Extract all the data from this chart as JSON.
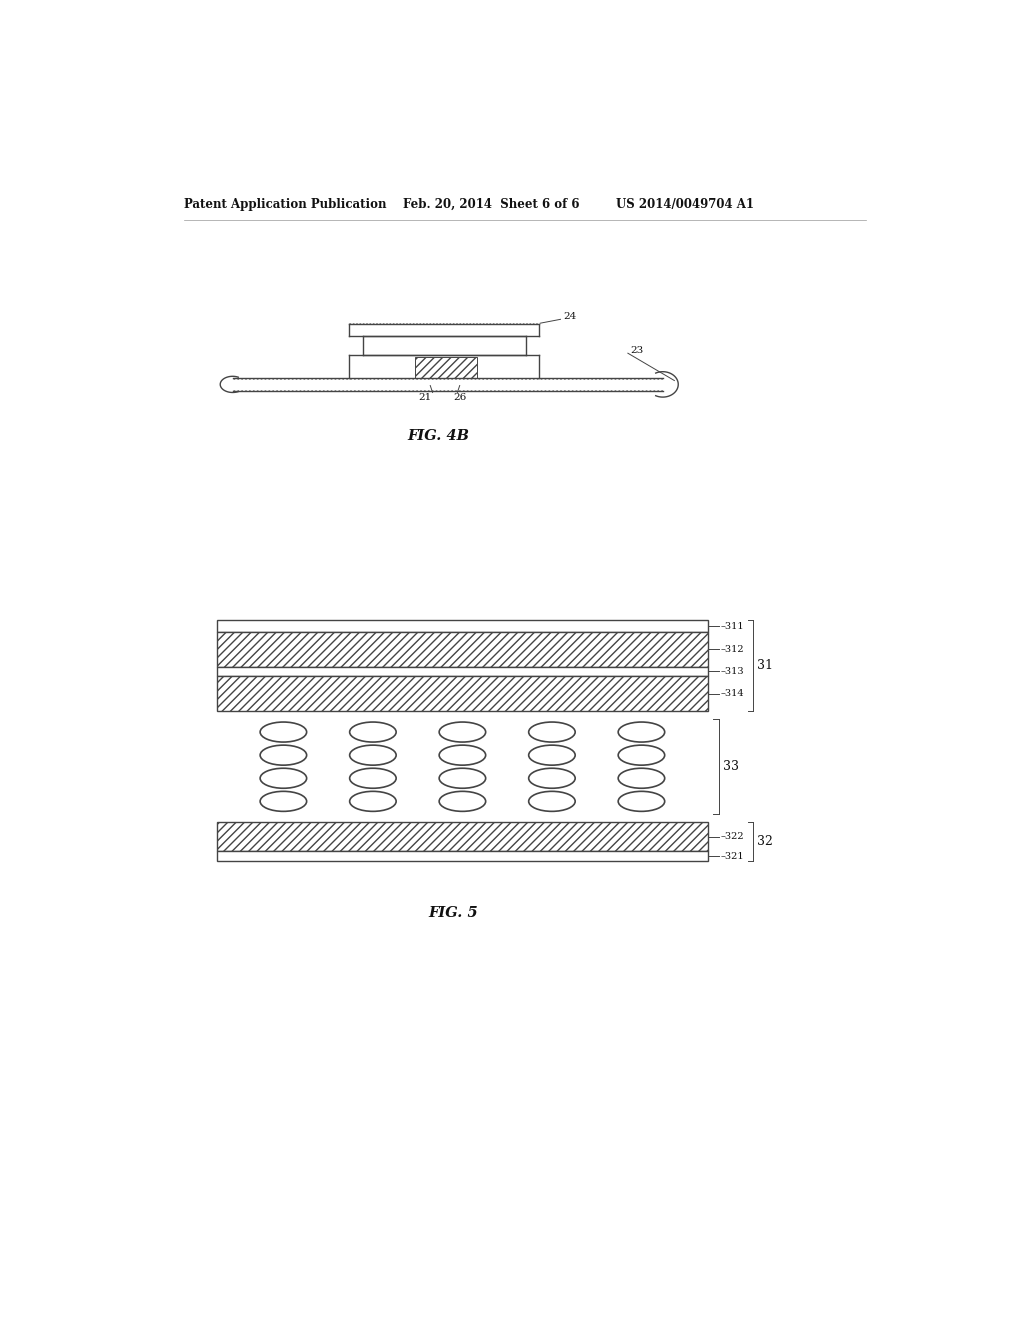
{
  "bg_color": "#ffffff",
  "header_left": "Patent Application Publication",
  "header_mid": "Feb. 20, 2014  Sheet 6 of 6",
  "header_right": "US 2014/0049704 A1",
  "fig4b_label": "FIG. 4B",
  "fig5_label": "FIG. 5",
  "label_21": "21",
  "label_23": "23",
  "label_24": "24",
  "label_26": "26",
  "label_311": "311",
  "label_312": "312",
  "label_313": "313",
  "label_314": "314",
  "label_322": "322",
  "label_321": "321",
  "label_31": "31",
  "label_32": "32",
  "label_33": "33"
}
